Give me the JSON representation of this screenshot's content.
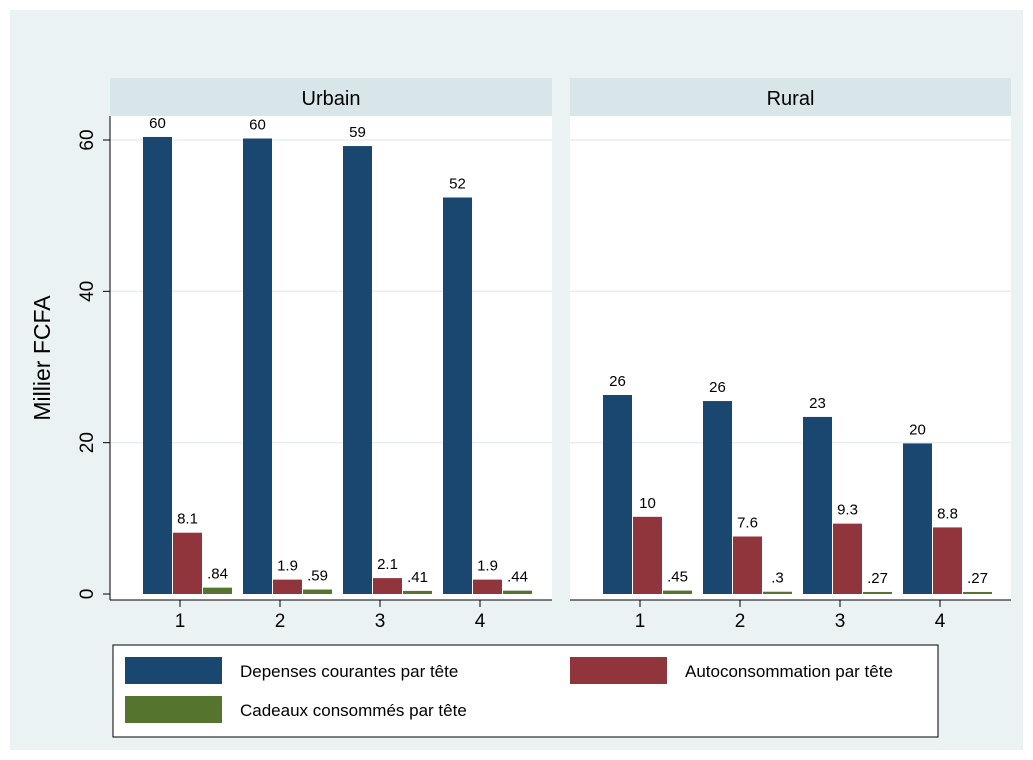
{
  "chart_data": {
    "type": "bar",
    "ylabel": "Millier FCFA",
    "ylim": [
      0,
      63
    ],
    "yticks": [
      0,
      20,
      40,
      60
    ],
    "categories": [
      "1",
      "2",
      "3",
      "4"
    ],
    "panels": [
      {
        "title": "Urbain",
        "series": [
          {
            "name": "Depenses courantes par tête",
            "values": [
              60.4,
              60.2,
              59.2,
              52.4
            ],
            "labels": [
              "60",
              "60",
              "59",
              "52"
            ]
          },
          {
            "name": "Autoconsommation par tête",
            "values": [
              8.1,
              1.9,
              2.1,
              1.9
            ],
            "labels": [
              "8.1",
              "1.9",
              "2.1",
              "1.9"
            ]
          },
          {
            "name": "Cadeaux consommés par tête",
            "values": [
              0.84,
              0.59,
              0.41,
              0.44
            ],
            "labels": [
              ".84",
              ".59",
              ".41",
              ".44"
            ]
          }
        ]
      },
      {
        "title": "Rural",
        "series": [
          {
            "name": "Depenses courantes par tête",
            "values": [
              26.3,
              25.5,
              23.4,
              19.9
            ],
            "labels": [
              "26",
              "26",
              "23",
              "20"
            ]
          },
          {
            "name": "Autoconsommation par tête",
            "values": [
              10.2,
              7.6,
              9.3,
              8.8
            ],
            "labels": [
              "10",
              "7.6",
              "9.3",
              "8.8"
            ]
          },
          {
            "name": "Cadeaux consommés par tête",
            "values": [
              0.45,
              0.3,
              0.27,
              0.27
            ],
            "labels": [
              ".45",
              ".3",
              ".27",
              ".27"
            ]
          }
        ]
      }
    ],
    "colors": [
      "#1a476f",
      "#90353b",
      "#55752f"
    ],
    "legend": {
      "position": "bottom",
      "items": [
        "Depenses courantes par tête",
        "Autoconsommation par tête",
        "Cadeaux consommés par tête"
      ]
    },
    "grid": true
  }
}
